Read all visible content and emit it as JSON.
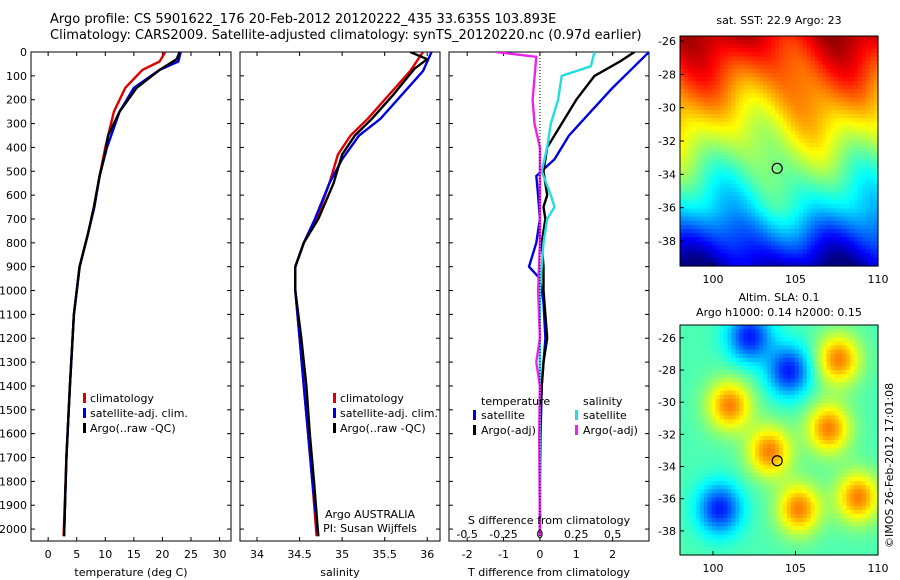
{
  "header": {
    "line1": "Argo profile: CS 5901622_176 20-Feb-2012 20120222_435 33.635S 103.893E",
    "line2": "Climatology: CARS2009. Satellite-adjusted climatology: synTS_20120220.nc (0.97d earlier)"
  },
  "chart_data": [
    {
      "type": "line",
      "xlabel": "temperature (deg C)",
      "xlim": [
        -3,
        32
      ],
      "ylim": [
        2050,
        0
      ],
      "xticks": [
        0,
        5,
        10,
        15,
        20,
        25,
        30
      ],
      "yticks": [
        0,
        100,
        200,
        300,
        400,
        500,
        600,
        700,
        800,
        900,
        1000,
        1100,
        1200,
        1300,
        1400,
        1500,
        1600,
        1700,
        1800,
        1900,
        2000
      ],
      "legend": [
        "climatology",
        "satellite-adj. clim.",
        "Argo(..raw -QC)"
      ],
      "series": [
        {
          "name": "climatology",
          "color": "#dd0000",
          "points": [
            [
              20.5,
              0
            ],
            [
              19.5,
              40
            ],
            [
              16.5,
              75
            ],
            [
              13.5,
              150
            ],
            [
              11.5,
              250
            ],
            [
              10,
              400
            ],
            [
              9,
              520
            ],
            [
              8,
              650
            ],
            [
              7,
              760
            ],
            [
              5.5,
              900
            ],
            [
              4.5,
              1100
            ],
            [
              3.8,
              1400
            ],
            [
              3.2,
              1700
            ],
            [
              2.7,
              2030
            ]
          ]
        },
        {
          "name": "satellite-adj. clim.",
          "color": "#0000dd",
          "points": [
            [
              23.2,
              0
            ],
            [
              22.8,
              40
            ],
            [
              19.5,
              75
            ],
            [
              15,
              150
            ],
            [
              12.5,
              250
            ],
            [
              10.3,
              400
            ],
            [
              9,
              520
            ],
            [
              8.1,
              650
            ],
            [
              7,
              760
            ],
            [
              5.5,
              900
            ],
            [
              4.5,
              1100
            ],
            [
              3.8,
              1400
            ],
            [
              3.2,
              1700
            ],
            [
              2.8,
              2030
            ]
          ]
        },
        {
          "name": "Argo(..raw -QC)",
          "color": "#000000",
          "points": [
            [
              23,
              0
            ],
            [
              22.5,
              30
            ],
            [
              19.5,
              75
            ],
            [
              15.5,
              150
            ],
            [
              12.5,
              250
            ],
            [
              10.5,
              350
            ],
            [
              10,
              420
            ],
            [
              9,
              520
            ],
            [
              8,
              650
            ],
            [
              7,
              760
            ],
            [
              5.5,
              900
            ],
            [
              4.5,
              1100
            ],
            [
              3.8,
              1400
            ],
            [
              3.2,
              1700
            ],
            [
              2.8,
              2030
            ]
          ]
        }
      ]
    },
    {
      "type": "line",
      "xlabel": "salinity",
      "xlim": [
        33.8,
        36.15
      ],
      "ylim": [
        2050,
        0
      ],
      "xticks": [
        34,
        34.5,
        35,
        35.5,
        36
      ],
      "legend": [
        "climatology",
        "satellite-adj. clim.",
        "Argo(..raw -QC)"
      ],
      "annotations": [
        "Argo AUSTRALIA",
        "PI: Susan Wijffels"
      ],
      "series": [
        {
          "name": "climatology",
          "color": "#dd0000",
          "points": [
            [
              35.95,
              0
            ],
            [
              35.8,
              80
            ],
            [
              35.55,
              180
            ],
            [
              35.3,
              280
            ],
            [
              35.1,
              350
            ],
            [
              34.95,
              430
            ],
            [
              34.85,
              550
            ],
            [
              34.7,
              700
            ],
            [
              34.55,
              800
            ],
            [
              34.45,
              900
            ],
            [
              34.45,
              1000
            ],
            [
              34.5,
              1200
            ],
            [
              34.55,
              1400
            ],
            [
              34.6,
              1600
            ],
            [
              34.65,
              1800
            ],
            [
              34.7,
              2030
            ]
          ]
        },
        {
          "name": "satellite-adj. clim.",
          "color": "#0000dd",
          "points": [
            [
              36.05,
              0
            ],
            [
              35.95,
              80
            ],
            [
              35.7,
              180
            ],
            [
              35.45,
              280
            ],
            [
              35.2,
              350
            ],
            [
              35.0,
              450
            ],
            [
              34.85,
              550
            ],
            [
              34.68,
              700
            ],
            [
              34.55,
              800
            ],
            [
              34.45,
              900
            ],
            [
              34.45,
              1000
            ],
            [
              34.5,
              1200
            ],
            [
              34.55,
              1400
            ],
            [
              34.6,
              1600
            ],
            [
              34.65,
              1800
            ],
            [
              34.72,
              2030
            ]
          ]
        },
        {
          "name": "Argo(..raw -QC)",
          "color": "#000000",
          "points": [
            [
              35.8,
              0
            ],
            [
              36.0,
              30
            ],
            [
              35.85,
              70
            ],
            [
              35.6,
              180
            ],
            [
              35.35,
              280
            ],
            [
              35.15,
              350
            ],
            [
              35.0,
              430
            ],
            [
              34.9,
              550
            ],
            [
              34.72,
              700
            ],
            [
              34.55,
              800
            ],
            [
              34.45,
              900
            ],
            [
              34.45,
              1000
            ],
            [
              34.52,
              1200
            ],
            [
              34.58,
              1400
            ],
            [
              34.62,
              1600
            ],
            [
              34.67,
              1800
            ],
            [
              34.72,
              2030
            ]
          ]
        }
      ]
    },
    {
      "type": "line",
      "xlabel": "T difference from climatology",
      "xlim": [
        -2.5,
        3
      ],
      "ylim": [
        2050,
        0
      ],
      "xticks": [
        -2,
        -1,
        0,
        1,
        2
      ],
      "top_label": "S difference from climatology",
      "top_ticks": [
        "-0.5",
        "-0.25",
        "0",
        "0.25",
        "0.5"
      ],
      "top_tick_values": [
        -2,
        -1,
        0,
        1,
        2
      ],
      "legend_groups": {
        "temperature": [
          "satellite",
          "Argo(-adj)"
        ],
        "salinity": [
          "satellite",
          "Argo(-adj)"
        ]
      },
      "series": [
        {
          "name": "satellite",
          "group": "temperature",
          "color": "#0000dd",
          "points": [
            [
              3,
              0
            ],
            [
              2.6,
              60
            ],
            [
              2.0,
              150
            ],
            [
              1.4,
              250
            ],
            [
              0.8,
              350
            ],
            [
              0.4,
              450
            ],
            [
              -0.1,
              520
            ],
            [
              -0.05,
              600
            ],
            [
              0,
              700
            ],
            [
              -0.1,
              800
            ],
            [
              -0.3,
              900
            ],
            [
              0,
              950
            ],
            [
              0.1,
              1050
            ],
            [
              0.15,
              1200
            ],
            [
              0.05,
              1400
            ],
            [
              0.02,
              1600
            ],
            [
              0,
              1800
            ],
            [
              0,
              2030
            ]
          ]
        },
        {
          "name": "Argo(-adj)",
          "group": "temperature",
          "color": "#000000",
          "points": [
            [
              2.6,
              0
            ],
            [
              2.2,
              40
            ],
            [
              1.5,
              100
            ],
            [
              1.0,
              200
            ],
            [
              0.6,
              300
            ],
            [
              0.2,
              400
            ],
            [
              0.1,
              500
            ],
            [
              0.2,
              600
            ],
            [
              0.1,
              650
            ],
            [
              0.15,
              700
            ],
            [
              0.05,
              800
            ],
            [
              0.1,
              900
            ],
            [
              0.1,
              1000
            ],
            [
              0.2,
              1200
            ],
            [
              0.1,
              1300
            ],
            [
              0.05,
              1400
            ],
            [
              0,
              1600
            ],
            [
              0,
              2030
            ]
          ]
        },
        {
          "name": "satellite",
          "group": "salinity",
          "color": "#22dddd",
          "points": [
            [
              1.5,
              0
            ],
            [
              1.4,
              60
            ],
            [
              0.6,
              100
            ],
            [
              0.5,
              200
            ],
            [
              0.3,
              300
            ],
            [
              0.2,
              400
            ],
            [
              0.05,
              500
            ],
            [
              0.3,
              600
            ],
            [
              0.4,
              650
            ],
            [
              0.2,
              700
            ],
            [
              0.1,
              800
            ],
            [
              0.05,
              900
            ],
            [
              0,
              1000
            ],
            [
              0,
              1200
            ],
            [
              0,
              1400
            ],
            [
              0,
              2030
            ]
          ]
        },
        {
          "name": "Argo(-adj)",
          "group": "salinity",
          "color": "#ee22ee",
          "points": [
            [
              -1.2,
              0
            ],
            [
              -0.1,
              20
            ],
            [
              -0.2,
              200
            ],
            [
              -0.15,
              300
            ],
            [
              0,
              400
            ],
            [
              0,
              800
            ],
            [
              -0.05,
              1000
            ],
            [
              0,
              1200
            ],
            [
              -0.1,
              1300
            ],
            [
              0,
              1400
            ],
            [
              -0.02,
              1600
            ],
            [
              0,
              2030
            ]
          ]
        }
      ]
    },
    {
      "type": "heatmap",
      "title": "sat. SST: 22.9 Argo: 23",
      "xlim": [
        98,
        110
      ],
      "ylim": [
        -39.5,
        -25.7
      ],
      "xticks": [
        100,
        105,
        110
      ],
      "yticks": [
        -26,
        -28,
        -30,
        -32,
        -34,
        -36,
        -38
      ],
      "colormap": "jet",
      "marker": {
        "lon": 103.89,
        "lat": -33.64
      }
    },
    {
      "type": "heatmap",
      "title": "Altim. SLA: 0.1",
      "subtitle": "Argo h1000: 0.14 h2000: 0.15",
      "xlim": [
        98,
        110
      ],
      "ylim": [
        -39.5,
        -25.2
      ],
      "xticks": [
        100,
        105,
        110
      ],
      "yticks": [
        -26,
        -28,
        -30,
        -32,
        -34,
        -36,
        -38
      ],
      "colormap": "jet",
      "marker": {
        "lon": 103.89,
        "lat": -33.64
      }
    }
  ],
  "footer": {
    "credit": "©IMOS 26-Feb-2012 17:01:08"
  }
}
